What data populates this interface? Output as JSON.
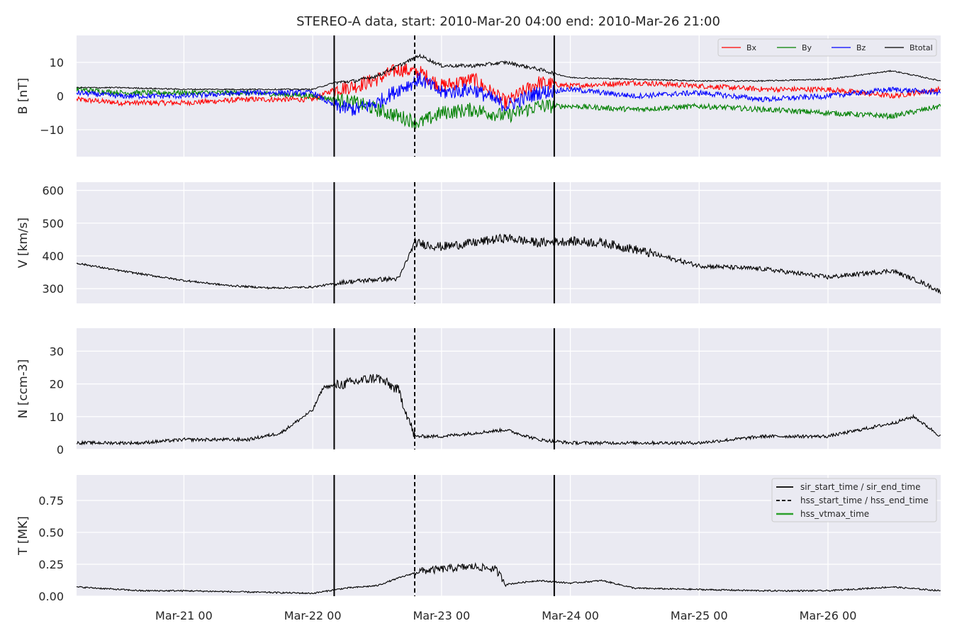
{
  "chart_data": {
    "type": "line",
    "title": "STEREO-A data, start: 2010-Mar-20 04:00  end: 2010-Mar-26 21:00",
    "x_range": [
      "2010-03-20 04:00",
      "2010-03-26 21:00"
    ],
    "x_ticks": [
      "Mar-21 00",
      "Mar-22 00",
      "Mar-23 00",
      "Mar-24 00",
      "Mar-25 00",
      "Mar-26 00"
    ],
    "grid": true,
    "panels": [
      {
        "ylabel": "B [nT]",
        "ylim": [
          -18,
          18
        ],
        "yticks": [
          {
            "v": 10,
            "label": "10"
          },
          {
            "v": 0,
            "label": "0"
          },
          {
            "v": -10,
            "label": "−10"
          }
        ],
        "legend_position": "top-right",
        "series": [
          {
            "name": "Bx",
            "color": "#ff0000",
            "x": [
              "2010-03-20 04:00",
              "2010-03-20 12:00",
              "2010-03-21 00:00",
              "2010-03-21 12:00",
              "2010-03-22 00:00",
              "2010-03-22 04:00",
              "2010-03-22 08:00",
              "2010-03-22 12:00",
              "2010-03-22 16:00",
              "2010-03-22 20:00",
              "2010-03-23 00:00",
              "2010-03-23 06:00",
              "2010-03-23 12:00",
              "2010-03-23 18:00",
              "2010-03-24 00:00",
              "2010-03-24 12:00",
              "2010-03-25 00:00",
              "2010-03-25 12:00",
              "2010-03-26 00:00",
              "2010-03-26 12:00",
              "2010-03-26 21:00"
            ],
            "values": [
              -1,
              -2,
              -2,
              -1,
              -1,
              2,
              3,
              5,
              8,
              7,
              3,
              5,
              -2,
              4,
              3,
              4,
              3,
              2,
              2,
              0,
              2
            ]
          },
          {
            "name": "By",
            "color": "#008000",
            "x": [
              "2010-03-20 04:00",
              "2010-03-20 12:00",
              "2010-03-21 00:00",
              "2010-03-21 12:00",
              "2010-03-22 00:00",
              "2010-03-22 04:00",
              "2010-03-22 08:00",
              "2010-03-22 12:00",
              "2010-03-22 16:00",
              "2010-03-22 20:00",
              "2010-03-23 00:00",
              "2010-03-23 06:00",
              "2010-03-23 12:00",
              "2010-03-23 18:00",
              "2010-03-24 00:00",
              "2010-03-24 12:00",
              "2010-03-25 00:00",
              "2010-03-25 12:00",
              "2010-03-26 00:00",
              "2010-03-26 12:00",
              "2010-03-26 21:00"
            ],
            "values": [
              2,
              1,
              1,
              1,
              0,
              -1,
              -2,
              -4,
              -6,
              -8,
              -5,
              -4,
              -6,
              -3,
              -3,
              -4,
              -3,
              -4,
              -5,
              -6,
              -3
            ]
          },
          {
            "name": "Bz",
            "color": "#0000ff",
            "x": [
              "2010-03-20 04:00",
              "2010-03-20 12:00",
              "2010-03-21 00:00",
              "2010-03-21 12:00",
              "2010-03-22 00:00",
              "2010-03-22 04:00",
              "2010-03-22 08:00",
              "2010-03-22 12:00",
              "2010-03-22 16:00",
              "2010-03-22 20:00",
              "2010-03-23 00:00",
              "2010-03-23 06:00",
              "2010-03-23 12:00",
              "2010-03-23 18:00",
              "2010-03-24 00:00",
              "2010-03-24 12:00",
              "2010-03-25 00:00",
              "2010-03-25 12:00",
              "2010-03-26 00:00",
              "2010-03-26 12:00",
              "2010-03-26 21:00"
            ],
            "values": [
              1,
              0,
              0,
              1,
              1,
              -3,
              -4,
              -2,
              2,
              5,
              1,
              2,
              -3,
              1,
              2,
              0,
              1,
              -1,
              0,
              2,
              1
            ]
          },
          {
            "name": "Btotal",
            "color": "#000000",
            "x": [
              "2010-03-20 04:00",
              "2010-03-20 12:00",
              "2010-03-21 00:00",
              "2010-03-21 12:00",
              "2010-03-22 00:00",
              "2010-03-22 04:00",
              "2010-03-22 08:00",
              "2010-03-22 12:00",
              "2010-03-22 16:00",
              "2010-03-22 20:00",
              "2010-03-23 00:00",
              "2010-03-23 06:00",
              "2010-03-23 12:00",
              "2010-03-23 18:00",
              "2010-03-24 00:00",
              "2010-03-24 12:00",
              "2010-03-25 00:00",
              "2010-03-25 12:00",
              "2010-03-26 00:00",
              "2010-03-26 12:00",
              "2010-03-26 21:00"
            ],
            "values": [
              2.5,
              2.5,
              2,
              2,
              2,
              4,
              4.5,
              6,
              9,
              12,
              9,
              9,
              10,
              8,
              5.5,
              5,
              4.5,
              4.5,
              5,
              7.5,
              4.5
            ]
          }
        ]
      },
      {
        "ylabel": "V [km/s]",
        "ylim": [
          255,
          625
        ],
        "yticks": [
          {
            "v": 600,
            "label": "600"
          },
          {
            "v": 500,
            "label": "500"
          },
          {
            "v": 400,
            "label": "400"
          },
          {
            "v": 300,
            "label": "300"
          }
        ],
        "series": [
          {
            "name": "V",
            "color": "#000000",
            "x": [
              "2010-03-20 04:00",
              "2010-03-20 12:00",
              "2010-03-20 20:00",
              "2010-03-21 00:00",
              "2010-03-21 08:00",
              "2010-03-21 16:00",
              "2010-03-22 00:00",
              "2010-03-22 06:00",
              "2010-03-22 12:00",
              "2010-03-22 16:00",
              "2010-03-22 19:00",
              "2010-03-23 00:00",
              "2010-03-23 06:00",
              "2010-03-23 12:00",
              "2010-03-23 18:00",
              "2010-03-24 00:00",
              "2010-03-24 06:00",
              "2010-03-24 12:00",
              "2010-03-24 18:00",
              "2010-03-25 00:00",
              "2010-03-25 12:00",
              "2010-03-26 00:00",
              "2010-03-26 06:00",
              "2010-03-26 12:00",
              "2010-03-26 18:00",
              "2010-03-26 21:00"
            ],
            "values": [
              378,
              355,
              335,
              325,
              310,
              302,
              305,
              320,
              328,
              330,
              440,
              428,
              440,
              455,
              440,
              445,
              440,
              420,
              395,
              370,
              360,
              335,
              345,
              355,
              315,
              290
            ]
          }
        ]
      },
      {
        "ylabel": "N [ccm-3]",
        "ylim": [
          0,
          37
        ],
        "yticks": [
          {
            "v": 30,
            "label": "30"
          },
          {
            "v": 20,
            "label": "20"
          },
          {
            "v": 10,
            "label": "10"
          },
          {
            "v": 0,
            "label": "0"
          }
        ],
        "series": [
          {
            "name": "N",
            "color": "#000000",
            "x": [
              "2010-03-20 04:00",
              "2010-03-20 16:00",
              "2010-03-21 00:00",
              "2010-03-21 12:00",
              "2010-03-21 18:00",
              "2010-03-22 00:00",
              "2010-03-22 02:00",
              "2010-03-22 06:00",
              "2010-03-22 12:00",
              "2010-03-22 16:00",
              "2010-03-22 19:00",
              "2010-03-23 00:00",
              "2010-03-23 06:00",
              "2010-03-23 12:00",
              "2010-03-23 18:00",
              "2010-03-24 00:00",
              "2010-03-24 12:00",
              "2010-03-25 00:00",
              "2010-03-25 12:00",
              "2010-03-26 00:00",
              "2010-03-26 12:00",
              "2010-03-26 16:00",
              "2010-03-26 21:00"
            ],
            "values": [
              2,
              2,
              3,
              3,
              5,
              12,
              19,
              20,
              22,
              18,
              4,
              4,
              5,
              6,
              3,
              2,
              2,
              2,
              4,
              4,
              8,
              10,
              4
            ]
          }
        ]
      },
      {
        "ylabel": "T [MK]",
        "ylim": [
          0,
          0.95
        ],
        "yticks": [
          {
            "v": 0.75,
            "label": "0.75"
          },
          {
            "v": 0.5,
            "label": "0.50"
          },
          {
            "v": 0.25,
            "label": "0.25"
          },
          {
            "v": 0,
            "label": "0.00"
          }
        ],
        "legend_position": "top-right",
        "series": [
          {
            "name": "T",
            "color": "#000000",
            "x": [
              "2010-03-20 04:00",
              "2010-03-20 16:00",
              "2010-03-21 00:00",
              "2010-03-21 12:00",
              "2010-03-22 00:00",
              "2010-03-22 06:00",
              "2010-03-22 12:00",
              "2010-03-22 16:00",
              "2010-03-22 19:00",
              "2010-03-23 00:00",
              "2010-03-23 06:00",
              "2010-03-23 10:00",
              "2010-03-23 12:00",
              "2010-03-23 18:00",
              "2010-03-24 00:00",
              "2010-03-24 06:00",
              "2010-03-24 12:00",
              "2010-03-25 00:00",
              "2010-03-25 12:00",
              "2010-03-26 00:00",
              "2010-03-26 12:00",
              "2010-03-26 21:00"
            ],
            "values": [
              0.07,
              0.04,
              0.04,
              0.03,
              0.02,
              0.06,
              0.08,
              0.14,
              0.18,
              0.2,
              0.22,
              0.2,
              0.09,
              0.12,
              0.1,
              0.12,
              0.06,
              0.05,
              0.04,
              0.04,
              0.07,
              0.04
            ]
          }
        ]
      }
    ],
    "event_lines": [
      {
        "name": "sir_start_time / sir_end_time",
        "style": "solid",
        "times": [
          "2010-03-22 04:00",
          "2010-03-23 21:00"
        ]
      },
      {
        "name": "hss_start_time / hss_end_time",
        "style": "dashed",
        "times": [
          "2010-03-22 19:00"
        ]
      },
      {
        "name": "hss_vtmax_time",
        "style": "solid",
        "color": "#2ca02c",
        "times": []
      }
    ]
  }
}
